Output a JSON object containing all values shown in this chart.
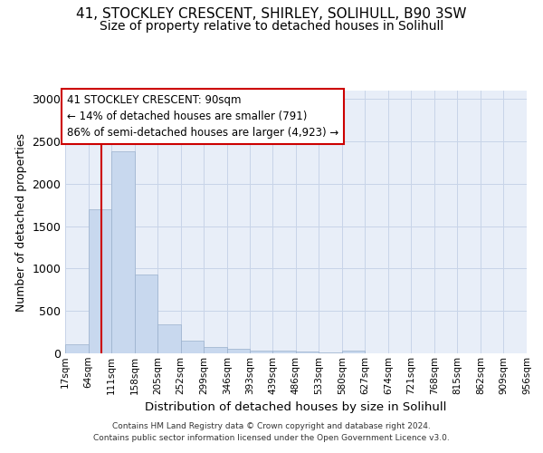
{
  "title1": "41, STOCKLEY CRESCENT, SHIRLEY, SOLIHULL, B90 3SW",
  "title2": "Size of property relative to detached houses in Solihull",
  "xlabel": "Distribution of detached houses by size in Solihull",
  "ylabel": "Number of detached properties",
  "footer1": "Contains HM Land Registry data © Crown copyright and database right 2024.",
  "footer2": "Contains public sector information licensed under the Open Government Licence v3.0.",
  "bin_edges": [
    17,
    64,
    111,
    158,
    205,
    252,
    299,
    346,
    393,
    439,
    486,
    533,
    580,
    627,
    674,
    721,
    768,
    815,
    862,
    909,
    956
  ],
  "bar_heights": [
    110,
    1700,
    2380,
    930,
    340,
    150,
    75,
    55,
    35,
    30,
    20,
    10,
    30,
    5,
    5,
    3,
    2,
    2,
    1,
    1
  ],
  "bar_color": "#c8d8ee",
  "bar_edge_color": "#9ab0cc",
  "grid_color": "#c8d4e8",
  "red_line_x": 90,
  "annotation_title": "41 STOCKLEY CRESCENT: 90sqm",
  "annotation_line1": "← 14% of detached houses are smaller (791)",
  "annotation_line2": "86% of semi-detached houses are larger (4,923) →",
  "annotation_box_facecolor": "#ffffff",
  "annotation_box_edgecolor": "#cc0000",
  "red_line_color": "#cc0000",
  "ylim": [
    0,
    3100
  ],
  "yticks": [
    0,
    500,
    1000,
    1500,
    2000,
    2500,
    3000
  ],
  "fig_bg_color": "#ffffff",
  "ax_bg_color": "#e8eef8",
  "title1_fontsize": 11,
  "title2_fontsize": 10,
  "ann_fontsize": 8.5,
  "ylabel_fontsize": 9,
  "xlabel_fontsize": 9.5,
  "footer_fontsize": 6.5,
  "xtick_fontsize": 7.5,
  "ytick_fontsize": 9
}
